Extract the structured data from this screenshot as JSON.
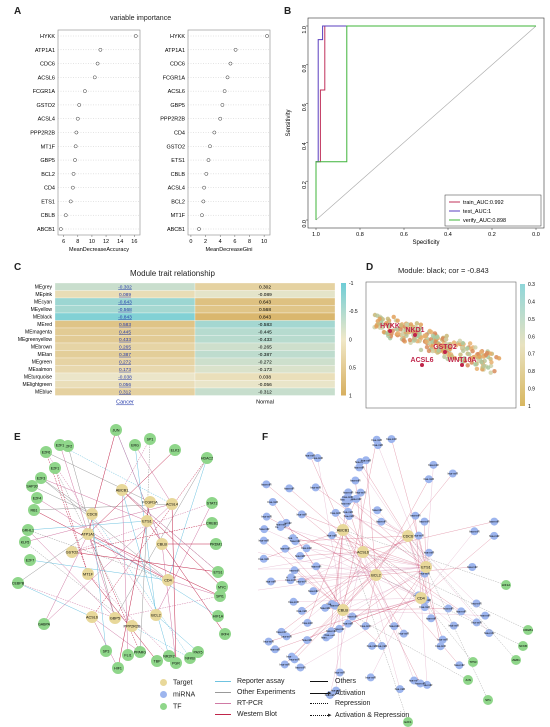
{
  "panels": {
    "A": {
      "letter": "A",
      "title": "variable importance",
      "left_plot": {
        "genes": [
          "HYKK",
          "ATP1A1",
          "CDC6",
          "ACSL6",
          "FCGR1A",
          "GSTO2",
          "ACSL4",
          "PPP2R2B",
          "MT1F",
          "GBP5",
          "BCL2",
          "CD4",
          "ETS1",
          "CBLB",
          "ABCB1"
        ],
        "values": [
          16.2,
          11.2,
          10.8,
          10.4,
          9.0,
          8.2,
          8.0,
          7.8,
          7.7,
          7.6,
          7.4,
          7.3,
          7.0,
          6.3,
          5.6
        ],
        "xlabel": "MeanDecreaseAccuracy",
        "xticks": [
          "6",
          "8",
          "10",
          "12",
          "14",
          "16"
        ],
        "xlim": [
          5.2,
          16.8
        ]
      },
      "right_plot": {
        "genes": [
          "HYKK",
          "ATP1A1",
          "CDC6",
          "FCGR1A",
          "ACSL6",
          "GBP5",
          "PPP2R2B",
          "CD4",
          "GSTO2",
          "ETS1",
          "CBLB",
          "ACSL4",
          "BCL2",
          "MT1F",
          "ABCB1"
        ],
        "values": [
          10.4,
          6.1,
          5.4,
          5.0,
          4.6,
          4.3,
          4.0,
          3.2,
          2.6,
          2.4,
          2.1,
          1.8,
          1.7,
          1.5,
          1.1
        ],
        "xlabel": "MeanDecreaseGini",
        "xticks": [
          "0",
          "2",
          "4",
          "6",
          "8",
          "10"
        ],
        "xlim": [
          -0.4,
          10.8
        ]
      }
    },
    "B": {
      "letter": "B",
      "xlabel": "Specificity",
      "ylabel": "Sensitivity",
      "xticks": [
        "1.0",
        "0.8",
        "0.6",
        "0.4",
        "0.2",
        "0.0"
      ],
      "yticks": [
        "0.0",
        "0.2",
        "0.4",
        "0.6",
        "0.8",
        "1.0"
      ],
      "legend": [
        {
          "label": "train_AUC:0.992",
          "color": "#c0305a"
        },
        {
          "label": "test_AUC:1",
          "color": "#5a3fbf"
        },
        {
          "label": "verify_AUC:0.898",
          "color": "#3fb43a"
        }
      ]
    },
    "C": {
      "letter": "C",
      "title": "Module trait relationship",
      "modules": [
        "MEgrey",
        "MEpink",
        "MEcyan",
        "MEyellow",
        "MEblack",
        "MEred",
        "MEmagenta",
        "MEgreenyellow",
        "MEbrown",
        "MEtan",
        "MEgreen",
        "MEsalmon",
        "MEturquoise",
        "MElightgreen",
        "MEblue"
      ],
      "cancer": [
        "-0.302",
        "0.089",
        "-0.643",
        "-0.568",
        "-0.843",
        "0.583",
        "0.445",
        "0.433",
        "0.265",
        "0.387",
        "0.272",
        "0.173",
        "-0.038",
        "0.056",
        "0.312"
      ],
      "normal": [
        "0.302",
        "-0.089",
        "0.643",
        "0.568",
        "0.843",
        "-0.583",
        "-0.445",
        "-0.433",
        "-0.265",
        "-0.387",
        "-0.272",
        "-0.173",
        "0.038",
        "-0.056",
        "-0.312"
      ],
      "columns": [
        "Cancer",
        "Normal"
      ],
      "scale_ticks": [
        "-1",
        "-0.5",
        "0",
        "0.5",
        "1"
      ]
    },
    "D": {
      "letter": "D",
      "title": "Module: black; cor = -0.843",
      "genes": [
        "HYKK",
        "NKD1",
        "GSTO2",
        "ACSL6",
        "WNT10A"
      ],
      "scale_ticks": [
        "0.3",
        "0.4",
        "0.5",
        "0.6",
        "0.7",
        "0.8",
        "0.9",
        "1"
      ]
    },
    "E": {
      "letter": "E",
      "targets": [
        "CDC6",
        "ATP1A1",
        "GSTO2",
        "MT1F",
        "ACSL6",
        "ABCB1",
        "FCGR1A",
        "ETS1",
        "CBLB",
        "ACSL4",
        "CD4",
        "GBP5",
        "PPP2R2B",
        "BCL2"
      ],
      "tfs": [
        "E2F1",
        "E2F2",
        "E2F6",
        "E2F3",
        "SAP30",
        "E2F4",
        "RB1",
        "GRHL1",
        "KLF5",
        "E2F7",
        "CEBPB",
        "GABPA",
        "JUN",
        "ERG",
        "SP1",
        "ELK3",
        "HDAC2",
        "STAT1",
        "CREB1",
        "PRDM1",
        "ETS1",
        "MYC",
        "SPI1",
        "HIF1A",
        "IRF4",
        "PAX5",
        "NFKB",
        "PGR",
        "NR2F2",
        "TBP",
        "PPARG",
        "SP3",
        "FLI1",
        "HIF1",
        "E2F1"
      ]
    },
    "F": {
      "letter": "F",
      "hubs": [
        "ABCB1",
        "ACSL6",
        "BCL2",
        "CDC6",
        "ETS1",
        "CBLB",
        "CD4"
      ],
      "mirna_prefix": "hsa-miR",
      "tfs": [
        "HIF1A",
        "CREB1",
        "NFKB",
        "ZEB1",
        "SP1",
        "JUN",
        "TP53",
        "E2F1"
      ]
    },
    "legend": {
      "node_types": [
        {
          "label": "Target",
          "color": "#e8d89a"
        },
        {
          "label": "miRNA",
          "color": "#9db5ee"
        },
        {
          "label": "TF",
          "color": "#8fd68a"
        }
      ],
      "edge_colors": [
        {
          "label": "Reporter assay",
          "color": "#6fc3e0"
        },
        {
          "label": "Other Experiments",
          "color": "#999999"
        },
        {
          "label": "RT-PCR",
          "color": "#d07aa5"
        },
        {
          "label": "Western Blot",
          "color": "#c0254a"
        }
      ],
      "edge_styles": [
        {
          "label": "Others",
          "style": "solid"
        },
        {
          "label": "Activation",
          "style": "arrow"
        },
        {
          "label": "Repression",
          "style": "dotted"
        },
        {
          "label": "Activation & Repression",
          "style": "dotted-arrow"
        }
      ]
    }
  }
}
